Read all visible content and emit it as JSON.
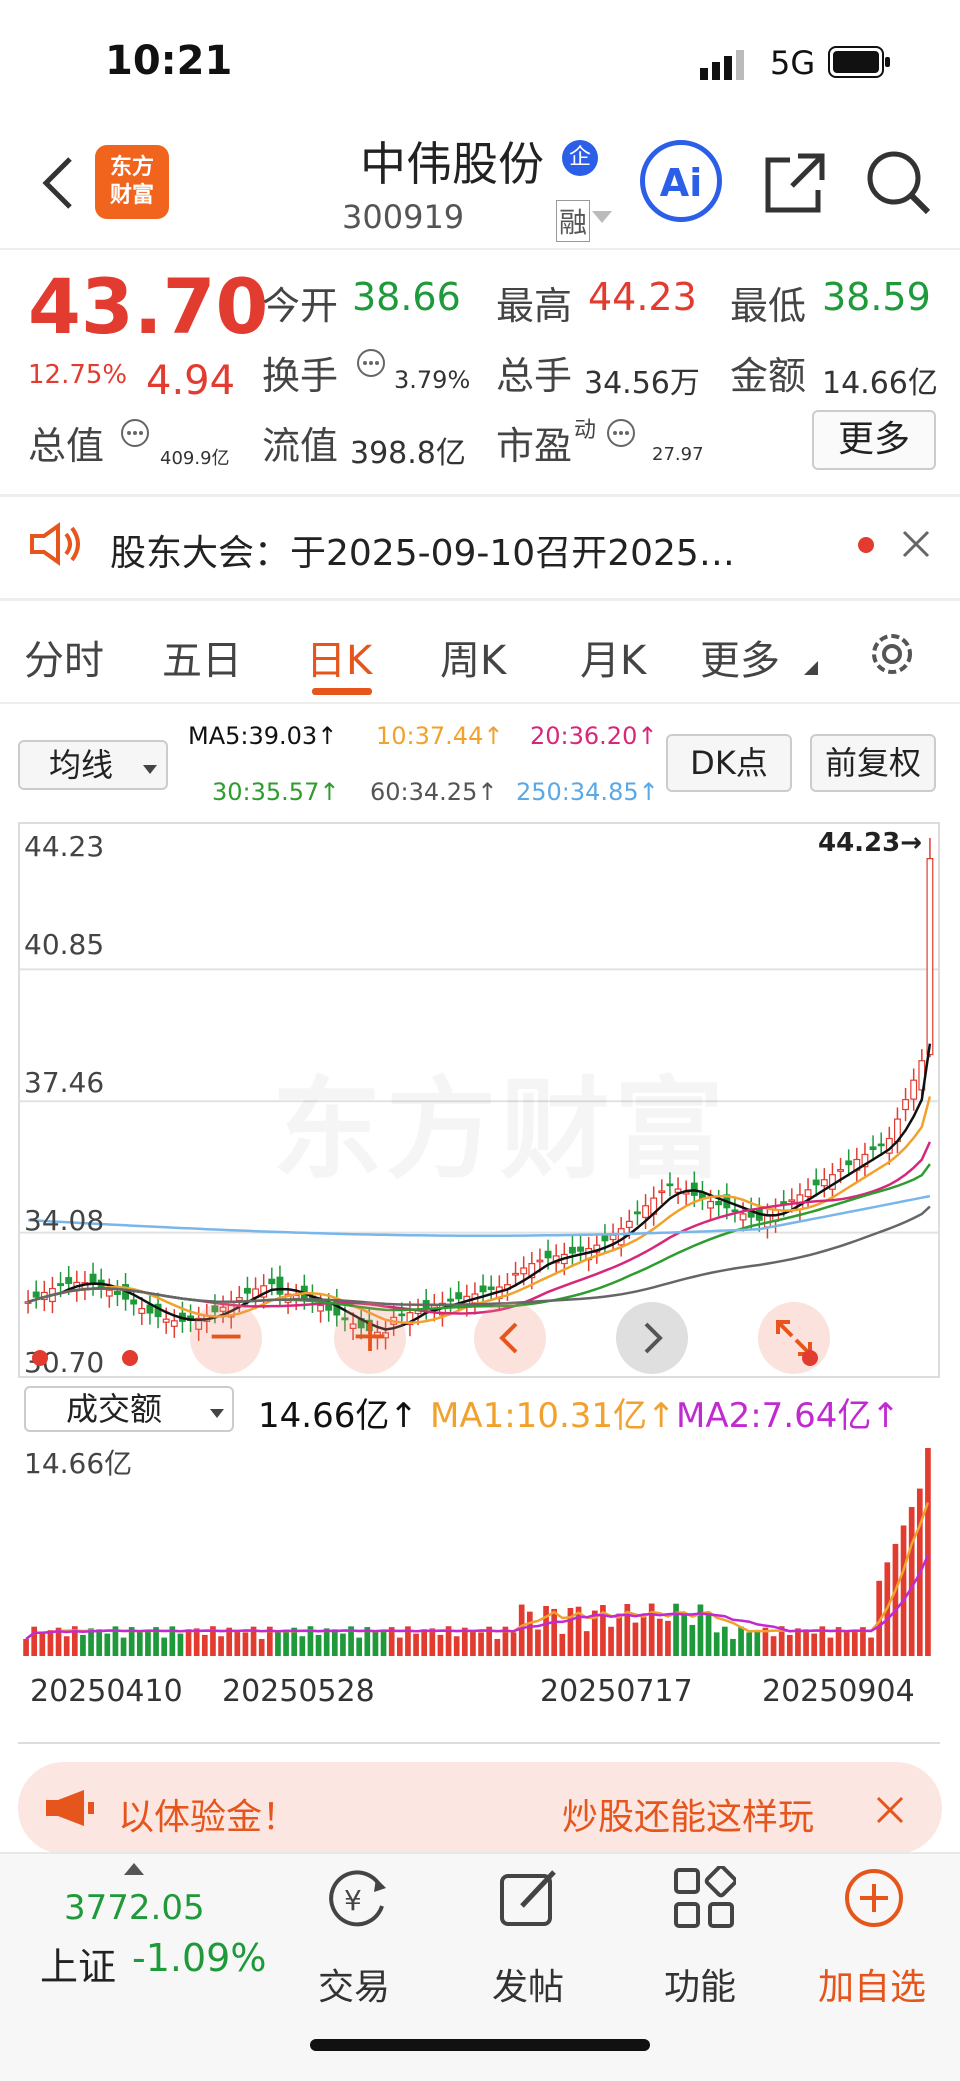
{
  "status": {
    "time": "10:21",
    "network": "5G"
  },
  "header": {
    "logo_text": "东方财富",
    "title": "中伟股份",
    "code": "300919",
    "badge_qi": "企",
    "badge_rong": "融",
    "ai_label": "Ai"
  },
  "quote": {
    "price": "43.70",
    "change_pct": "12.75%",
    "change": "4.94",
    "open_label": "今开",
    "open": "38.66",
    "high_label": "最高",
    "high": "44.23",
    "low_label": "最低",
    "low": "38.59",
    "turnover_label": "换手",
    "turnover": "3.79%",
    "volume_label": "总手",
    "volume": "34.56万",
    "amount_label": "金额",
    "amount": "14.66亿",
    "mktcap_label": "总值",
    "mktcap": "409.9亿",
    "float_label": "流值",
    "float": "398.8亿",
    "pe_label": "市盈",
    "pe_sup": "动",
    "pe": "27.97",
    "more_label": "更多"
  },
  "notice": {
    "text": "股东大会：于2025-09-10召开2025…"
  },
  "tabs": [
    "分时",
    "五日",
    "日K",
    "周K",
    "月K",
    "更多"
  ],
  "kline": {
    "indicator_select": "均线",
    "ma5": "MA5:39.03↑",
    "ma10": "10:37.44↑",
    "ma20": "20:36.20↑",
    "ma30": "30:35.57↑",
    "ma60": "60:34.25↑",
    "ma250": "250:34.85↑",
    "dk_label": "DK点",
    "adjust_label": "前复权",
    "y_labels": [
      "44.23",
      "40.85",
      "37.46",
      "34.08",
      "30.70"
    ],
    "max_marker": "44.23→",
    "watermark": "东方财富",
    "colors": {
      "up": "#e23b30",
      "down": "#1e9a3a",
      "ma5": "#111111",
      "ma10": "#f2a12c",
      "ma20": "#d6287a",
      "ma30": "#2e9c2e",
      "ma60": "#666666",
      "ma250": "#79b6ea"
    }
  },
  "volume": {
    "select": "成交额",
    "value": "14.66亿↑",
    "ma1": "MA1:10.31亿↑",
    "ma2": "MA2:7.64亿↑",
    "top_label": "14.66亿"
  },
  "dates": [
    "20250410",
    "20250528",
    "20250717",
    "20250904"
  ],
  "promo": {
    "left_text": "以体验金！",
    "right_text": "炒股还能这样玩"
  },
  "bottom": {
    "index_value": "3772.05",
    "index_name": "上证",
    "index_change": "-1.09%",
    "nav": [
      "交易",
      "发帖",
      "功能",
      "加自选"
    ]
  },
  "chart_data": {
    "type": "candlestick",
    "title": "",
    "ylim": [
      30.7,
      44.23
    ],
    "y_ticks": [
      44.23,
      40.85,
      37.46,
      34.08,
      30.7
    ],
    "x_labels": [
      "20250410",
      "20250528",
      "20250717",
      "20250904"
    ],
    "ma_values": {
      "MA5": 39.03,
      "MA10": 37.44,
      "MA20": 36.2,
      "MA30": 35.57,
      "MA60": 34.25,
      "MA250": 34.85
    },
    "last_candle": {
      "open": 38.66,
      "high": 44.23,
      "low": 38.59,
      "close": 43.7
    },
    "volume_max_yi": 14.66,
    "volume_ma": {
      "MA1": 10.31,
      "MA2": 7.64
    }
  }
}
